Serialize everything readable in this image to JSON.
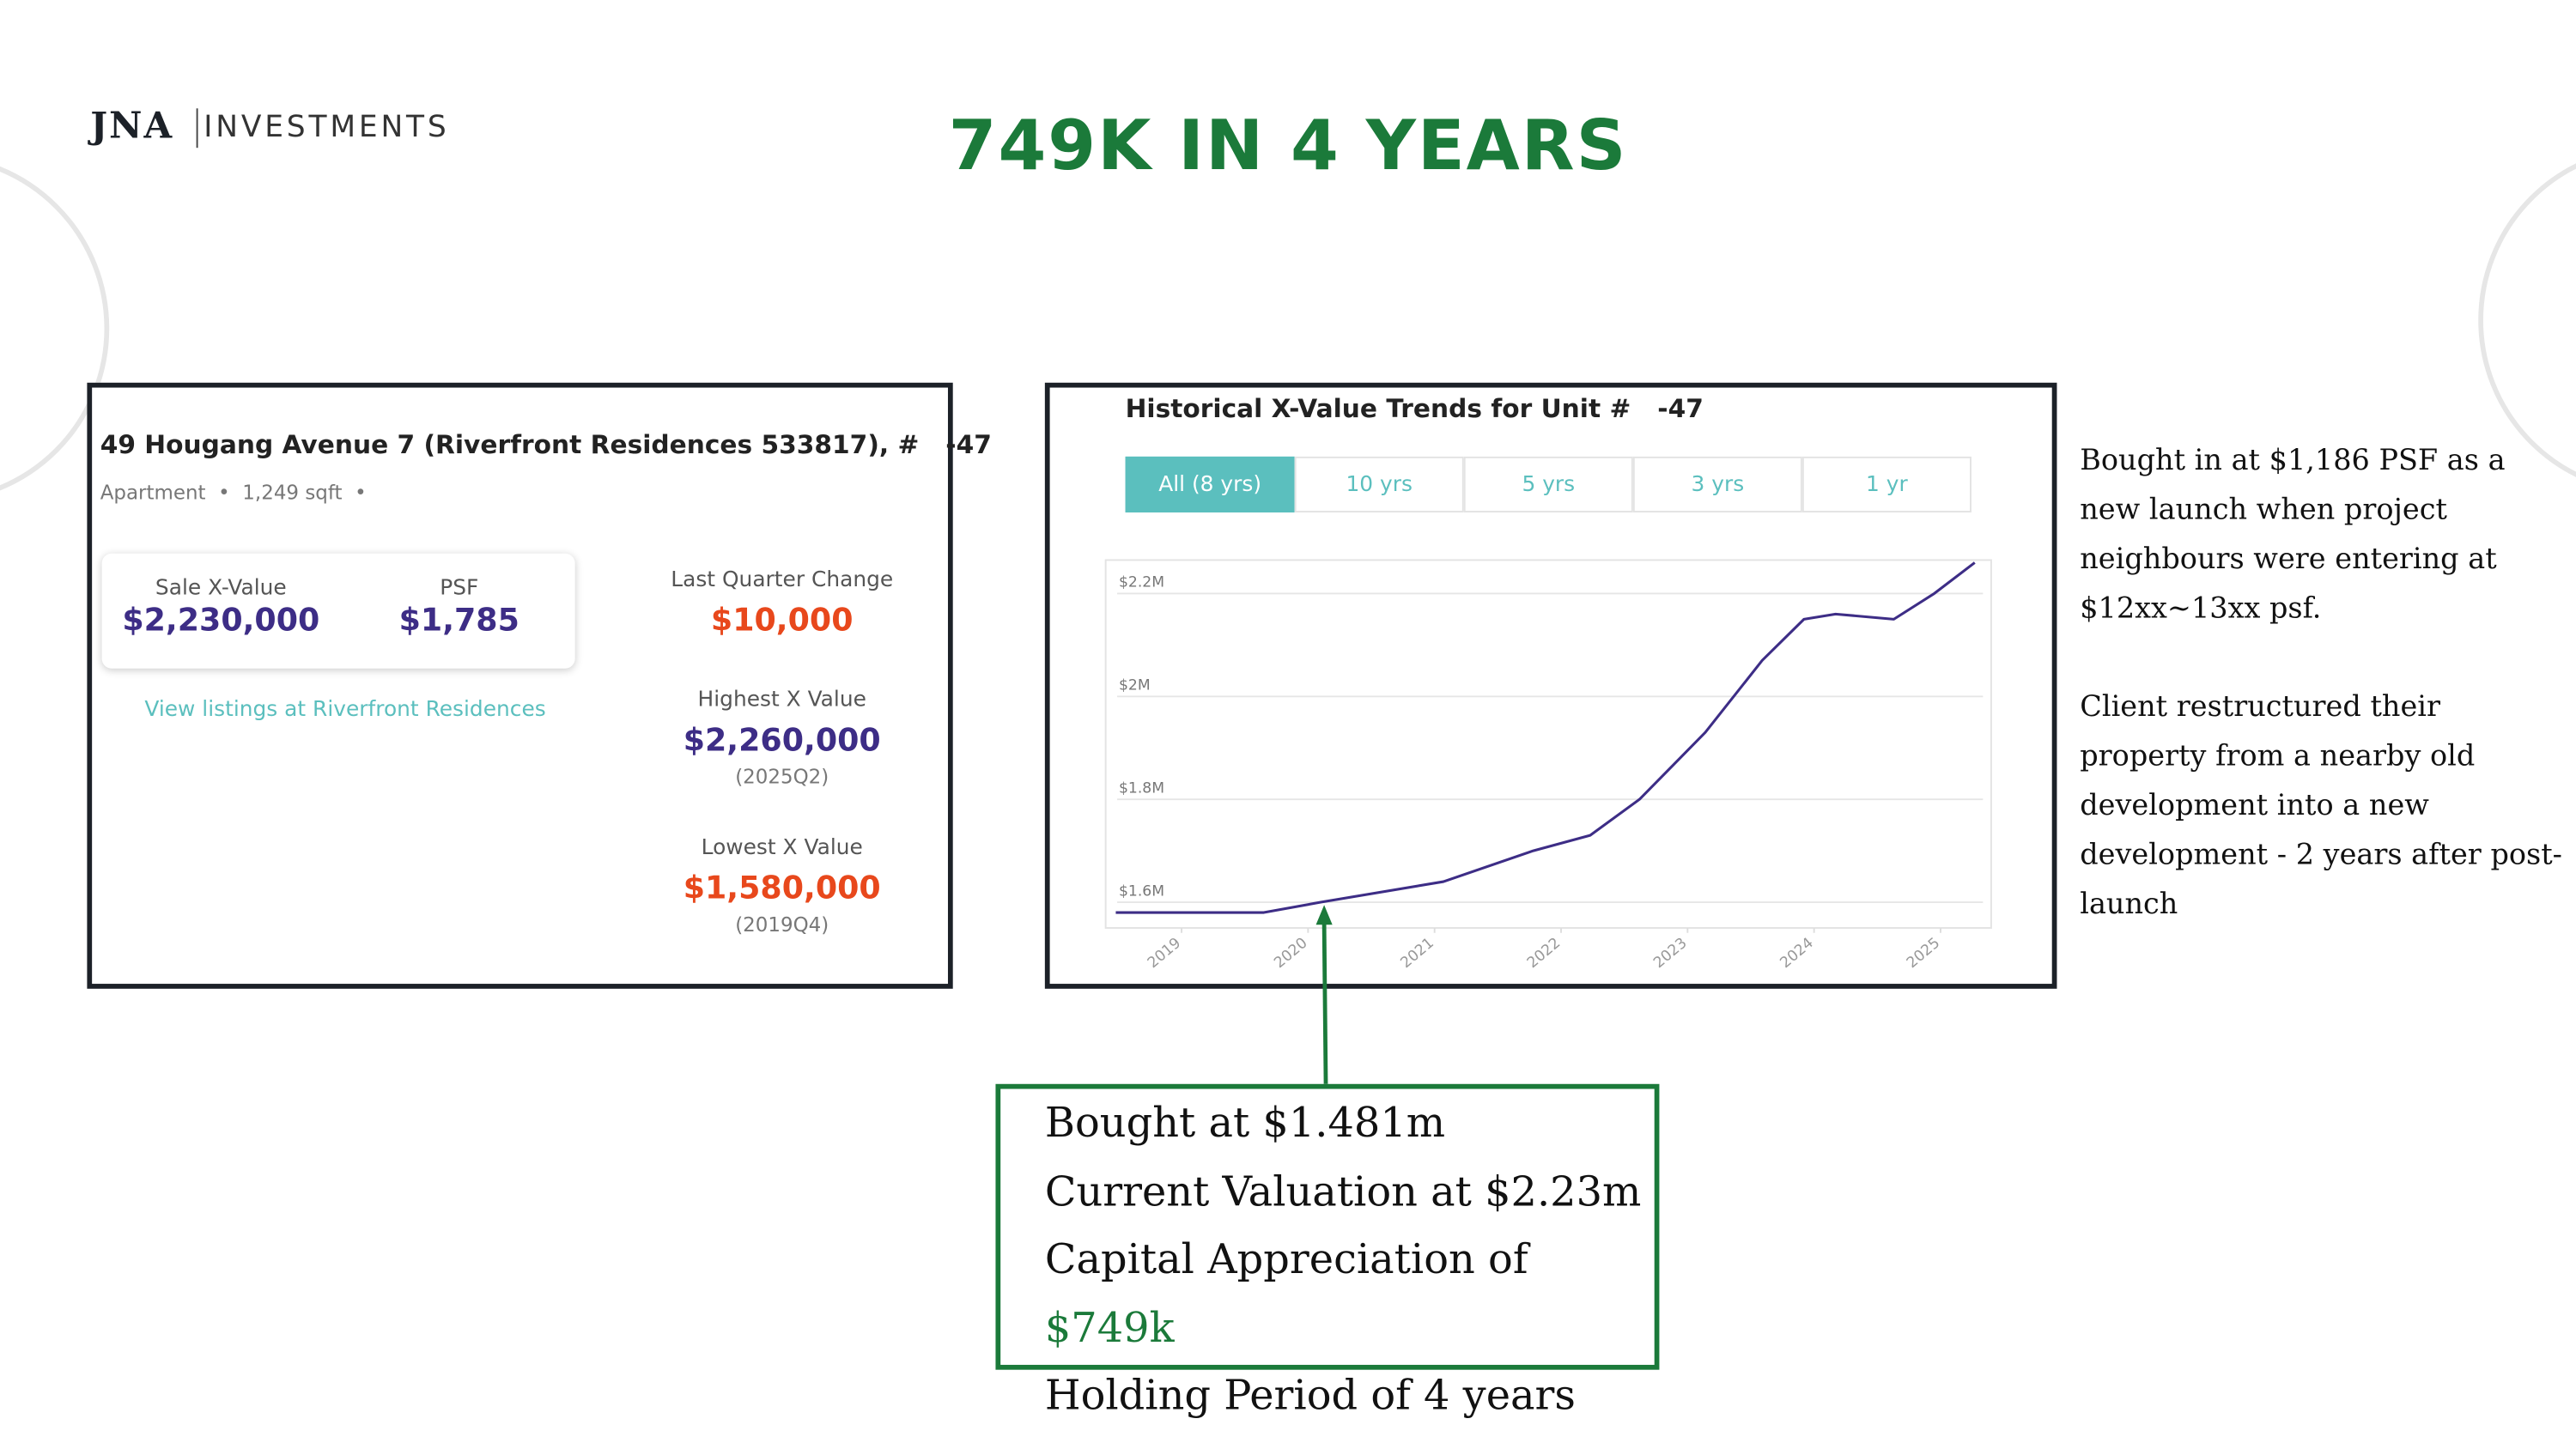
{
  "logo": {
    "mark": "JNA",
    "name": "INVESTMENTS"
  },
  "title": "749K IN 4 YEARS",
  "listing": {
    "address": "49 Hougang Avenue 7 (Riverfront Residences 533817), #   -47",
    "type": "Apartment",
    "size": "1,249 sqft",
    "sale_label": "Sale X-Value",
    "sale_value": "$2,230,000",
    "psf_label": "PSF",
    "psf_value": "$1,785",
    "link": "View listings at Riverfront Residences",
    "change_label": "Last Quarter Change",
    "change_value": "$10,000",
    "highest_label": "Highest X Value",
    "highest_value": "$2,260,000",
    "highest_period": "(2025Q2)",
    "lowest_label": "Lowest X Value",
    "lowest_value": "$1,580,000",
    "lowest_period": "(2019Q4)"
  },
  "tabs": [
    "All (8 yrs)",
    "10 yrs",
    "5 yrs",
    "3 yrs",
    "1 yr"
  ],
  "chart_data": {
    "type": "line",
    "title": "Historical X-Value Trends for Unit #   -47",
    "color": "#3d2d86",
    "x": [
      2018.48,
      2019.65,
      2020.1,
      2021.07,
      2021.78,
      2022.23,
      2022.62,
      2023.14,
      2023.59,
      2023.92,
      2024.17,
      2024.63,
      2024.95,
      2025.27
    ],
    "values": [
      1.58,
      1.58,
      1.6,
      1.64,
      1.7,
      1.73,
      1.8,
      1.93,
      2.07,
      2.15,
      2.16,
      2.15,
      2.2,
      2.26
    ],
    "xlim": [
      2018.4,
      2025.4
    ],
    "xticks": [
      2019,
      2020,
      2021,
      2022,
      2023,
      2024,
      2025
    ],
    "ylim": [
      1.55,
      2.265
    ],
    "yticks": [
      {
        "value": 1.6,
        "label": "$1.6M"
      },
      {
        "value": 1.8,
        "label": "$1.8M"
      },
      {
        "value": 2,
        "label": "$2M"
      },
      {
        "value": 2.2,
        "label": "$2.2M"
      }
    ],
    "grid": true
  },
  "notes": [
    "Bought in at $1,186 PSF as a new launch when project neighbours were entering at $12xx~13xx psf.",
    "Client restructured their property from a nearby old development into a new development - 2 years after post-launch"
  ],
  "callout": {
    "line1": "Bought at $1.481m",
    "line2": "Current Valuation at $2.23m",
    "line3": {
      "text": "Capital Appreciation of",
      "highlight": "$749k"
    },
    "line4": "Holding Period of 4 years"
  }
}
